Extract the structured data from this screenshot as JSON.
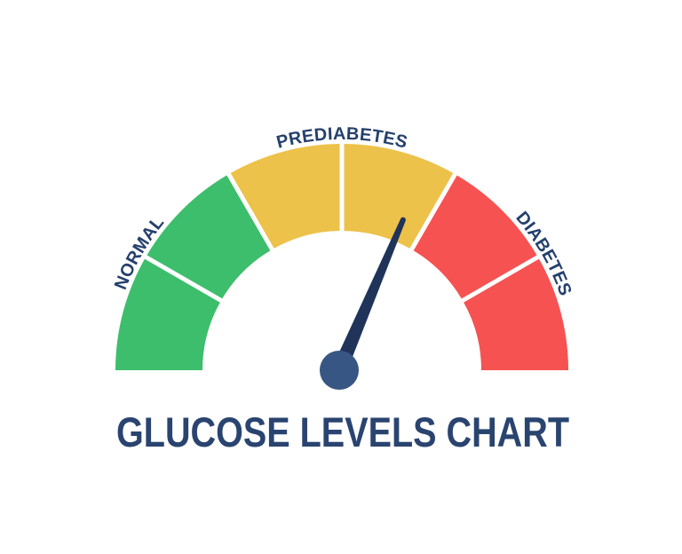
{
  "title": "GLUCOSE LEVELS CHART",
  "colors": {
    "green": "#3dbe6c",
    "yellow": "#edc24a",
    "red": "#f65252",
    "needle": "#20345a",
    "hub": "#385683",
    "label_text": "#24406d",
    "title_text": "#2a4470",
    "divider": "#ffffff",
    "background": "#ffffff"
  },
  "gauge": {
    "labels": [
      {
        "text": "NORMAL",
        "angle_deg": 150
      },
      {
        "text": "PREDIABETES",
        "angle_deg": 90
      },
      {
        "text": "DIABETES",
        "angle_deg": 30
      }
    ],
    "segments": [
      {
        "zone": "normal",
        "color_key": "green",
        "start_deg": 180,
        "end_deg": 150
      },
      {
        "zone": "normal",
        "color_key": "green",
        "start_deg": 150,
        "end_deg": 120
      },
      {
        "zone": "prediabetes",
        "color_key": "yellow",
        "start_deg": 120,
        "end_deg": 90
      },
      {
        "zone": "prediabetes",
        "color_key": "yellow",
        "start_deg": 90,
        "end_deg": 60
      },
      {
        "zone": "diabetes",
        "color_key": "red",
        "start_deg": 60,
        "end_deg": 30
      },
      {
        "zone": "diabetes",
        "color_key": "red",
        "start_deg": 30,
        "end_deg": 0
      }
    ],
    "needle": {
      "angle_deg": 67,
      "pointing_zone": "prediabetes"
    }
  },
  "chart_data": {
    "type": "gauge",
    "title": "GLUCOSE LEVELS CHART",
    "categories": [
      "NORMAL",
      "PREDIABETES",
      "DIABETES"
    ],
    "zone_colors": [
      "#3dbe6c",
      "#edc24a",
      "#f65252"
    ],
    "segments_per_zone": 2,
    "segment_count": 6,
    "segment_span_deg": 30,
    "gauge_span_deg": 180,
    "needle_angle_deg_from_left": 113,
    "needle_position_fraction": 0.63,
    "needle_zone": "PREDIABETES",
    "axis_values_shown": false,
    "legend": "none"
  }
}
